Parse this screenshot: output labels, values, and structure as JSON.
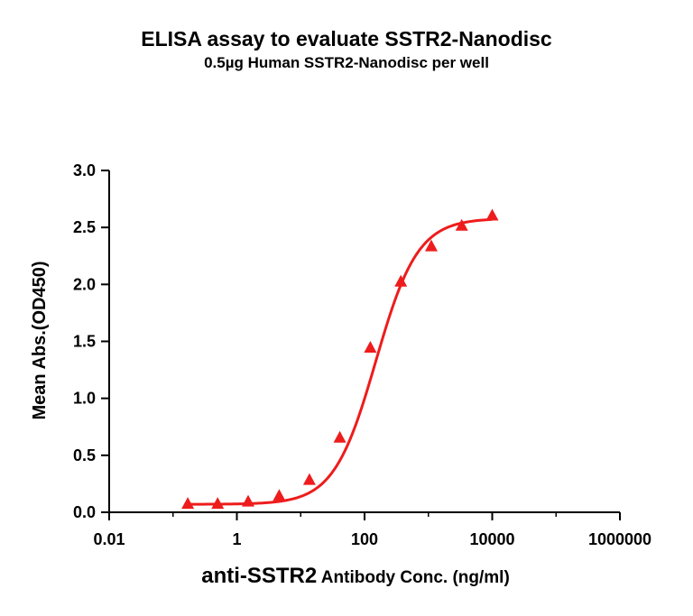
{
  "chart_data": {
    "type": "scatter",
    "title": "ELISA assay to evaluate SSTR2-Nanodisc",
    "subtitle": "0.5µg Human SSTR2-Nanodisc per well",
    "xlabel_main": "anti-SSTR2",
    "xlabel_rest": " Antibody Conc. (ng/ml)",
    "ylabel": "Mean Abs.(OD450)",
    "x_scale": "log",
    "xlim": [
      0.01,
      1000000
    ],
    "ylim": [
      0,
      3.0
    ],
    "x_ticks": [
      0.01,
      1,
      100,
      10000,
      1000000
    ],
    "x_tick_labels": [
      "0.01",
      "1",
      "100",
      "10000",
      "1000000"
    ],
    "y_ticks": [
      0,
      0.5,
      1.0,
      1.5,
      2.0,
      2.5,
      3.0
    ],
    "y_tick_labels": [
      "0.0",
      "0.5",
      "1.0",
      "1.5",
      "2.0",
      "2.5",
      "3.0"
    ],
    "grid": false,
    "marker": "triangle",
    "color": "#ee1c1c",
    "series": [
      {
        "x": [
          0.17,
          0.5,
          1.5,
          4.6,
          13.7,
          41,
          123,
          370,
          1111,
          3333,
          10000
        ],
        "y": [
          0.07,
          0.07,
          0.09,
          0.14,
          0.28,
          0.65,
          1.44,
          2.02,
          2.33,
          2.51,
          2.6
        ]
      }
    ],
    "fit": {
      "type": "4PL",
      "bottom": 0.07,
      "top": 2.58,
      "ec50": 150,
      "hill": 1.32
    }
  }
}
